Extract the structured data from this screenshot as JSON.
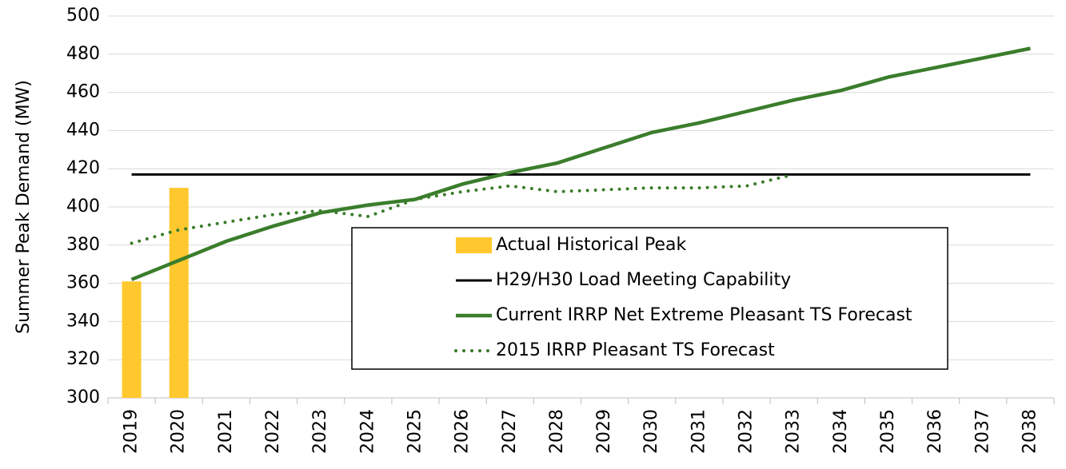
{
  "chart_data": {
    "type": "bar",
    "y_label": "Summer Peak Demand (MW)",
    "categories": [
      "2019",
      "2020",
      "2021",
      "2022",
      "2023",
      "2024",
      "2025",
      "2026",
      "2027",
      "2028",
      "2029",
      "2030",
      "2031",
      "2032",
      "2033",
      "2034",
      "2035",
      "2036",
      "2037",
      "2038"
    ],
    "series": [
      {
        "name": "Actual Historical Peak",
        "type": "bar",
        "color": "#ffc82e",
        "values": [
          361,
          410,
          null,
          null,
          null,
          null,
          null,
          null,
          null,
          null,
          null,
          null,
          null,
          null,
          null,
          null,
          null,
          null,
          null,
          null
        ]
      },
      {
        "name": "H29/H30 Load Meeting Capability",
        "type": "line",
        "style": "solid",
        "color": "#000000",
        "values": [
          417,
          417,
          417,
          417,
          417,
          417,
          417,
          417,
          417,
          417,
          417,
          417,
          417,
          417,
          417,
          417,
          417,
          417,
          417,
          417
        ]
      },
      {
        "name": "Current IRRP Net Extreme Pleasant TS Forecast",
        "type": "line",
        "style": "solid",
        "color": "#3a7d2c",
        "values": [
          362,
          372,
          382,
          390,
          397,
          401,
          404,
          412,
          418,
          423,
          431,
          439,
          444,
          450,
          456,
          461,
          468,
          473,
          478,
          483
        ]
      },
      {
        "name": "2015 IRRP Pleasant TS Forecast",
        "type": "line",
        "style": "dotted",
        "color": "#3a7d2c",
        "values": [
          381,
          388,
          392,
          396,
          398,
          395,
          404,
          408,
          411,
          408,
          409,
          410,
          410,
          411,
          417,
          null,
          null,
          null,
          null,
          null
        ]
      }
    ],
    "ylim": [
      300,
      500
    ],
    "yticks": [
      300,
      320,
      340,
      360,
      380,
      400,
      420,
      440,
      460,
      480,
      500
    ],
    "grid": true
  }
}
